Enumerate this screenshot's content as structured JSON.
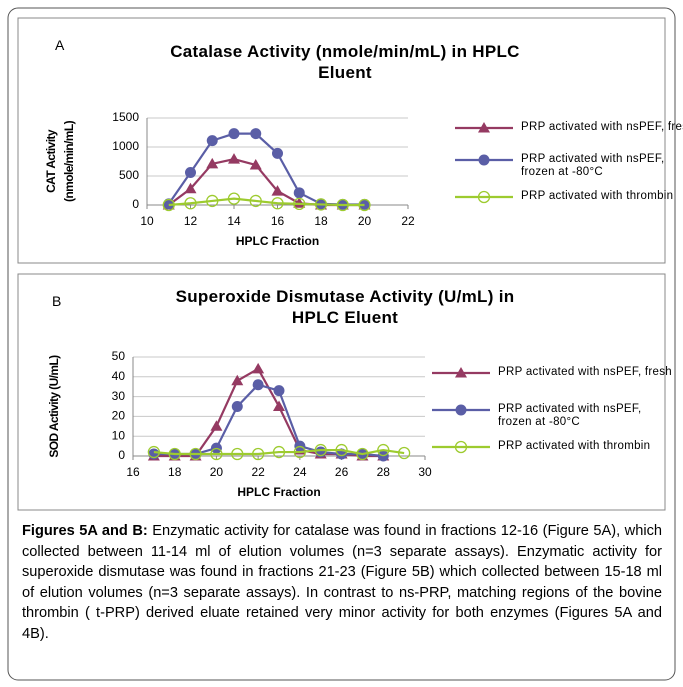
{
  "chart_data": [
    {
      "type": "line",
      "panel": "A",
      "title": "Catalase Activity (nmole/min/mL) in HPLC Eluent",
      "xlabel": "HPLC Fraction",
      "ylabel": [
        "CAT Activity",
        "(nmole/min/mL)"
      ],
      "x": [
        11,
        12,
        13,
        14,
        15,
        16,
        17,
        18,
        19,
        20
      ],
      "xlim": [
        10,
        22
      ],
      "xticks": [
        10,
        12,
        14,
        16,
        18,
        20,
        22
      ],
      "ylim": [
        0,
        1500
      ],
      "yticks": [
        0,
        500,
        1000,
        1500
      ],
      "grid": true,
      "series": [
        {
          "name": "PRP activated with nsPEF, fresh",
          "color": "#953a62",
          "marker": "triangle",
          "values": [
            0,
            280,
            710,
            790,
            690,
            240,
            30,
            0,
            0,
            0
          ]
        },
        {
          "name": "PRP activated with nsPEF, frozen at -80°C",
          "color": "#5a5ea6",
          "marker": "circle",
          "values": [
            20,
            560,
            1110,
            1230,
            1230,
            890,
            210,
            20,
            10,
            10
          ]
        },
        {
          "name": "PRP activated with thrombin",
          "color": "#9dcb2f",
          "marker": "open-circle",
          "values": [
            0,
            30,
            70,
            110,
            70,
            30,
            20,
            10,
            0,
            0
          ]
        }
      ]
    },
    {
      "type": "line",
      "panel": "B",
      "title": "Superoxide Dismutase Activity (U/mL) in HPLC Eluent",
      "xlabel": "HPLC Fraction",
      "ylabel": [
        "SOD Activity (U/mL)"
      ],
      "x": [
        17,
        18,
        19,
        20,
        21,
        22,
        23,
        24,
        25,
        26,
        27,
        28,
        29
      ],
      "xlim": [
        16,
        30
      ],
      "xticks": [
        16,
        18,
        20,
        22,
        24,
        26,
        28,
        30
      ],
      "ylim": [
        0,
        50
      ],
      "yticks": [
        0,
        10,
        20,
        30,
        40,
        50
      ],
      "grid": true,
      "series": [
        {
          "name": "PRP activated with nsPEF, fresh",
          "color": "#953a62",
          "marker": "triangle",
          "values": [
            0,
            0,
            0,
            15,
            38,
            44,
            25,
            3,
            1,
            1,
            0,
            0,
            null
          ]
        },
        {
          "name": "PRP activated with nsPEF, frozen at -80°C",
          "color": "#5a5ea6",
          "marker": "circle",
          "values": [
            1,
            1,
            1,
            4,
            25,
            36,
            33,
            5,
            2,
            1,
            1,
            0,
            null
          ]
        },
        {
          "name": "PRP activated with thrombin",
          "color": "#9dcb2f",
          "marker": "open-circle",
          "values": [
            2,
            1,
            1,
            1,
            1,
            1,
            2,
            2,
            3,
            3,
            1,
            3,
            1.5
          ]
        }
      ]
    }
  ],
  "caption": {
    "label": "Figures 5A and B:",
    "text": "Enzymatic activity for catalase was found in fractions 12-16 (Figure 5A), which collected between 11-14 ml of elution volumes (n=3 separate assays). Enzymatic activity for superoxide dismutase was found in fractions 21-23 (Figure 5B) which collected between 15-18 ml of elution volumes (n=3 separate assays). In contrast to ns-PRP, matching regions of the bovine thrombin ( t-PRP) derived eluate retained very minor activity for both enzymes (Figures 5A and 4B)."
  }
}
